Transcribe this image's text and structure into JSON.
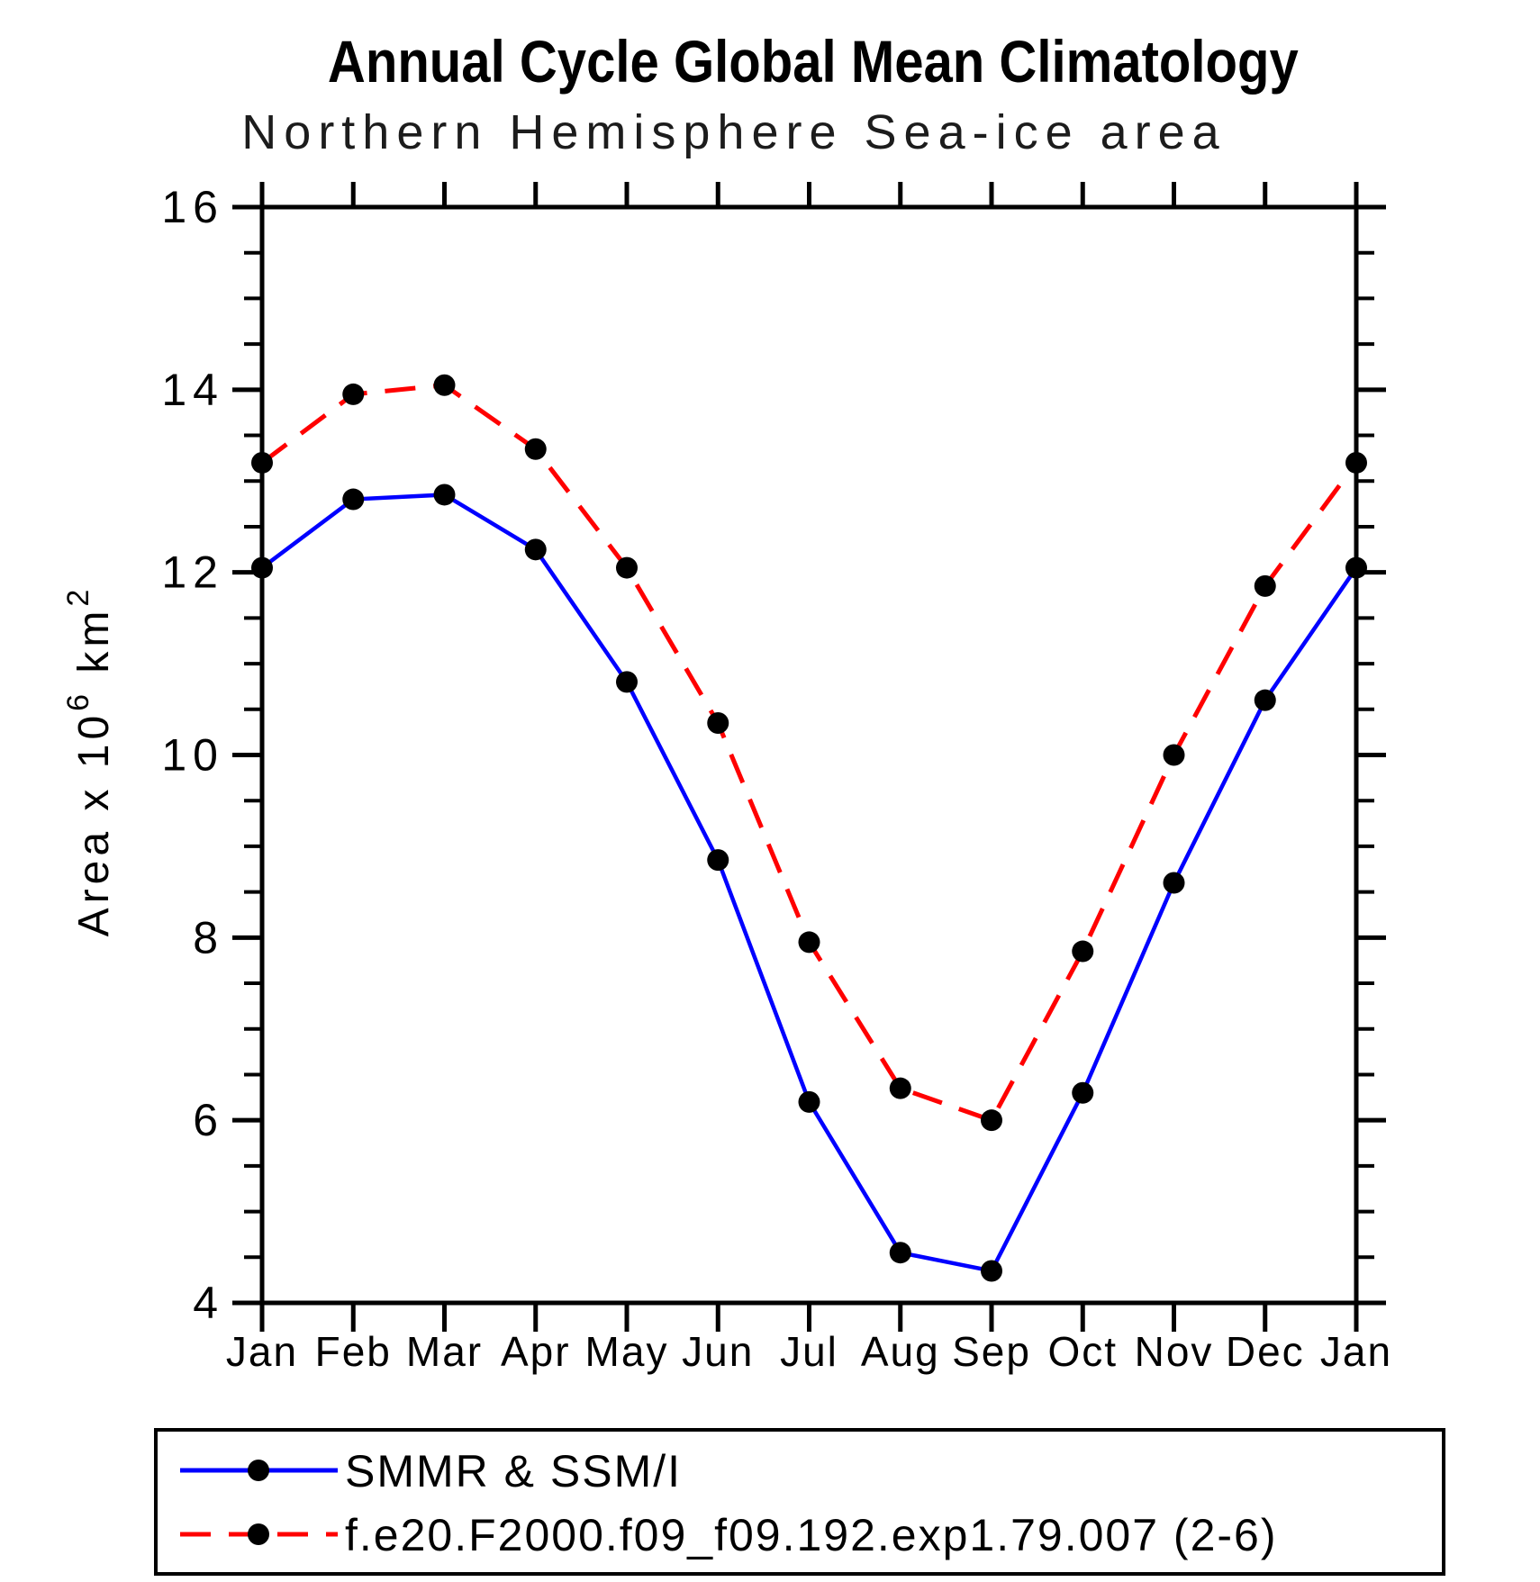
{
  "chart_data": {
    "type": "line",
    "title": "Annual Cycle Global Mean Climatology",
    "subtitle": "Northern Hemisphere Sea-ice area",
    "xlabel": "",
    "ylabel": "Area x 10^6 km^2",
    "ylabel_parts": {
      "text": "Area x 10",
      "exponent": "6",
      "unit": " km",
      "unit_exponent": "2"
    },
    "x_tick_labels": [
      "Jan",
      "Feb",
      "Mar",
      "Apr",
      "May",
      "Jun",
      "Jul",
      "Aug",
      "Sep",
      "Oct",
      "Nov",
      "Dec",
      "Jan"
    ],
    "ylim": [
      4,
      16
    ],
    "y_major_ticks": [
      4,
      6,
      8,
      10,
      12,
      14,
      16
    ],
    "y_minor_step": 0.5,
    "grid": false,
    "legend_position": "bottom-left-box",
    "axis_color": "#000000",
    "marker": "filled-circle",
    "marker_color": "#000000",
    "series": [
      {
        "name": "SMMR & SSM/I",
        "color": "#0000ff",
        "line_style": "solid",
        "values": [
          12.05,
          12.8,
          12.85,
          12.25,
          10.8,
          8.85,
          6.2,
          4.55,
          4.35,
          6.3,
          8.6,
          10.6,
          12.05
        ]
      },
      {
        "name": "f.e20.F2000.f09_f09.192.exp1.79.007 (2-6)",
        "color": "#ff0000",
        "line_style": "dashed",
        "values": [
          13.2,
          13.95,
          14.05,
          13.35,
          12.05,
          10.35,
          7.95,
          6.35,
          6.0,
          7.85,
          10.0,
          11.85,
          13.2
        ]
      }
    ]
  }
}
